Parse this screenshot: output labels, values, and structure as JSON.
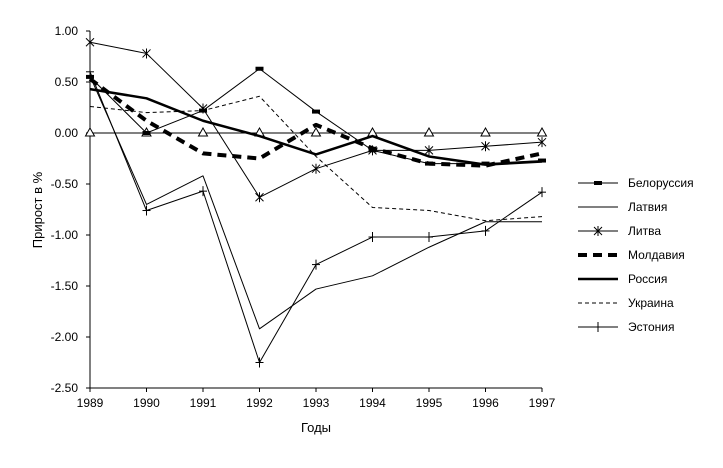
{
  "chart_data": {
    "type": "line",
    "xlabel": "Годы",
    "ylabel": "Прирост в %",
    "ylim": [
      -2.5,
      1.0
    ],
    "y_ticks": [
      "1.00",
      "0.50",
      "0.00",
      "-0.50",
      "-1.00",
      "-1.50",
      "-2.00",
      "-2.50"
    ],
    "y_tick_values": [
      1.0,
      0.5,
      0.0,
      -0.5,
      -1.0,
      -1.5,
      -2.0,
      -2.5
    ],
    "x": [
      "1989",
      "1990",
      "1991",
      "1992",
      "1993",
      "1994",
      "1995",
      "1996",
      "1997"
    ],
    "grid": false,
    "legend_position": "right",
    "series": [
      {
        "name": "Белоруссия",
        "style": "bar-marker",
        "values": [
          0.55,
          0.0,
          0.22,
          0.63,
          0.21,
          -0.17,
          -0.3,
          -0.3,
          -0.27
        ]
      },
      {
        "name": "Латвия",
        "style": "thin",
        "values": [
          0.56,
          -0.7,
          -0.42,
          -1.92,
          -1.53,
          -1.4,
          -1.12,
          -0.87,
          -0.87
        ]
      },
      {
        "name": "Литва",
        "style": "star",
        "values": [
          0.89,
          0.78,
          0.24,
          -0.63,
          -0.35,
          -0.17,
          -0.17,
          -0.13,
          -0.09
        ]
      },
      {
        "name": "Молдавия",
        "style": "thick-dash",
        "values": [
          0.53,
          0.12,
          -0.2,
          -0.25,
          0.08,
          -0.15,
          -0.3,
          -0.32,
          -0.2
        ]
      },
      {
        "name": "Россия",
        "style": "thick",
        "values": [
          0.43,
          0.34,
          0.12,
          -0.03,
          -0.21,
          -0.03,
          -0.23,
          -0.31,
          -0.28
        ]
      },
      {
        "name": "Украина",
        "style": "dash",
        "values": [
          0.26,
          0.2,
          0.22,
          0.36,
          -0.23,
          -0.73,
          -0.76,
          -0.86,
          -0.82
        ]
      },
      {
        "name": "Эстония",
        "style": "plus",
        "values": [
          0.6,
          -0.76,
          -0.57,
          -2.25,
          -1.29,
          -1.02,
          -1.02,
          -0.96,
          -0.58
        ]
      }
    ],
    "zero_line_triangles": true
  }
}
